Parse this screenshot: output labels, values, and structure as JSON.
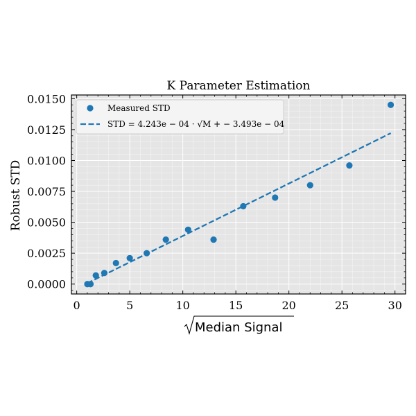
{
  "chart_data": {
    "type": "scatter",
    "title": "K Parameter Estimation",
    "xlabel": "Median Signal",
    "ylabel": "Robust STD",
    "xlim": [
      -0.5,
      31.0
    ],
    "ylim": [
      -0.0008,
      0.0153
    ],
    "x_ticks": [
      0,
      5,
      10,
      15,
      20,
      25,
      30
    ],
    "x_tick_labels": [
      "0",
      "5",
      "10",
      "15",
      "20",
      "25",
      "30"
    ],
    "y_ticks": [
      0.0,
      0.0025,
      0.005,
      0.0075,
      0.01,
      0.0125,
      0.015
    ],
    "y_tick_labels": [
      "0.0000",
      "0.0025",
      "0.0050",
      "0.0075",
      "0.0100",
      "0.0125",
      "0.0150"
    ],
    "grid": true,
    "legend_position": "top-left",
    "colors": {
      "series": "#1f77b4",
      "plot_background": "#e5e5e5",
      "grid": "#ffffff"
    },
    "series": [
      {
        "name": "Measured STD",
        "type": "scatter",
        "x": [
          1.0,
          1.3,
          1.8,
          2.6,
          3.7,
          5.0,
          6.6,
          8.4,
          10.5,
          12.9,
          15.7,
          18.7,
          22.0,
          25.7,
          29.6
        ],
        "y": [
          0.0,
          0.0,
          0.0007,
          0.0009,
          0.0017,
          0.0021,
          0.0025,
          0.0036,
          0.0044,
          0.0036,
          0.0063,
          0.007,
          0.008,
          0.0096,
          0.0145
        ]
      },
      {
        "name": "STD = 4.243e − 04 · √M + − 3.493e − 04",
        "type": "line",
        "style": "dashed",
        "slope": 0.0004243,
        "intercept": -0.0003493,
        "x": [
          1.0,
          29.6
        ]
      }
    ]
  }
}
